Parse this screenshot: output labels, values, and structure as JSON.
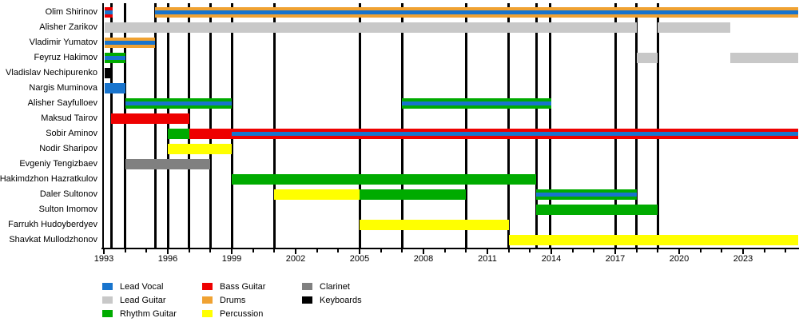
{
  "chart_data": {
    "type": "bar",
    "variant": "band-members-gantt-timeline",
    "title": "",
    "x_axis": {
      "min": 1993,
      "max": 2025.6,
      "major_ticks": [
        1993,
        1996,
        1999,
        2002,
        2005,
        2008,
        2011,
        2014,
        2017,
        2020,
        2023
      ],
      "minor_tick_interval": 1
    },
    "event_lines": [
      1993.35,
      1994.0,
      1995.4,
      1996.0,
      1997.0,
      1998.0,
      1999.0,
      2001.0,
      2005.0,
      2007.0,
      2010.0,
      2012.0,
      2013.3,
      2013.95,
      2017.0,
      2018.0,
      2019.0
    ],
    "legend": [
      {
        "label": "Lead Vocal",
        "color": "#1874CD"
      },
      {
        "label": "Lead Guitar",
        "color": "#C8C8C8"
      },
      {
        "label": "Rhythm Guitar",
        "color": "#00AB00"
      },
      {
        "label": "Bass Guitar",
        "color": "#EE0000"
      },
      {
        "label": "Drums",
        "color": "#F0A232"
      },
      {
        "label": "Percussion",
        "color": "#FFFF00"
      },
      {
        "label": "Clarinet",
        "color": "#808080"
      },
      {
        "label": "Keyboards",
        "color": "#000000"
      }
    ],
    "members": [
      {
        "name": "Olim Shirinov",
        "segments": [
          {
            "start": 1993.05,
            "end": 1993.4,
            "roles": [
              "Bass Guitar",
              "Lead Vocal"
            ]
          },
          {
            "start": 1995.4,
            "end": 2025.6,
            "roles": [
              "Drums",
              "Lead Vocal"
            ]
          }
        ]
      },
      {
        "name": "Alisher Zarikov",
        "segments": [
          {
            "start": 1993.05,
            "end": 2018.0,
            "roles": [
              "Lead Guitar"
            ]
          },
          {
            "start": 2019.0,
            "end": 2022.4,
            "roles": [
              "Lead Guitar"
            ]
          }
        ]
      },
      {
        "name": "Vladimir Yumatov",
        "segments": [
          {
            "start": 1993.05,
            "end": 1995.4,
            "roles": [
              "Drums",
              "Lead Vocal"
            ]
          }
        ]
      },
      {
        "name": "Feyruz Hakimov",
        "segments": [
          {
            "start": 1993.05,
            "end": 1994.0,
            "roles": [
              "Rhythm Guitar",
              "Lead Vocal"
            ]
          },
          {
            "start": 2018.0,
            "end": 2019.0,
            "roles": [
              "Lead Guitar"
            ]
          },
          {
            "start": 2022.4,
            "end": 2025.6,
            "roles": [
              "Lead Guitar"
            ]
          }
        ]
      },
      {
        "name": "Vladislav Nechipurenko",
        "segments": [
          {
            "start": 1993.05,
            "end": 1993.35,
            "roles": [
              "Keyboards"
            ]
          }
        ]
      },
      {
        "name": "Nargis Muminova",
        "segments": [
          {
            "start": 1993.05,
            "end": 1994.0,
            "roles": [
              "Lead Vocal"
            ]
          }
        ]
      },
      {
        "name": "Alisher Sayfulloev",
        "segments": [
          {
            "start": 1994.0,
            "end": 1999.0,
            "roles": [
              "Rhythm Guitar",
              "Lead Vocal"
            ]
          },
          {
            "start": 2007.0,
            "end": 2014.0,
            "roles": [
              "Rhythm Guitar",
              "Lead Vocal"
            ]
          }
        ]
      },
      {
        "name": "Maksud Tairov",
        "segments": [
          {
            "start": 1993.35,
            "end": 1997.0,
            "roles": [
              "Bass Guitar"
            ]
          }
        ]
      },
      {
        "name": "Sobir Aminov",
        "segments": [
          {
            "start": 1996.0,
            "end": 1997.0,
            "roles": [
              "Rhythm Guitar"
            ]
          },
          {
            "start": 1997.0,
            "end": 1999.0,
            "roles": [
              "Bass Guitar"
            ]
          },
          {
            "start": 1999.0,
            "end": 2025.6,
            "roles": [
              "Bass Guitar",
              "Lead Vocal"
            ]
          }
        ]
      },
      {
        "name": "Nodir Sharipov",
        "segments": [
          {
            "start": 1996.0,
            "end": 1999.0,
            "roles": [
              "Percussion"
            ]
          }
        ]
      },
      {
        "name": "Evgeniy Tengizbaev",
        "segments": [
          {
            "start": 1994.0,
            "end": 1998.0,
            "roles": [
              "Clarinet"
            ]
          }
        ]
      },
      {
        "name": "Hakimdzhon Hazratkulov",
        "segments": [
          {
            "start": 1999.0,
            "end": 2013.3,
            "roles": [
              "Rhythm Guitar"
            ]
          }
        ]
      },
      {
        "name": "Daler Sultonov",
        "segments": [
          {
            "start": 2001.0,
            "end": 2005.0,
            "roles": [
              "Percussion"
            ]
          },
          {
            "start": 2005.0,
            "end": 2010.0,
            "roles": [
              "Rhythm Guitar"
            ]
          },
          {
            "start": 2013.3,
            "end": 2018.0,
            "roles": [
              "Rhythm Guitar",
              "Lead Vocal"
            ]
          }
        ]
      },
      {
        "name": "Sulton Imomov",
        "segments": [
          {
            "start": 2013.3,
            "end": 2019.0,
            "roles": [
              "Rhythm Guitar"
            ]
          }
        ]
      },
      {
        "name": "Farrukh Hudoyberdyev",
        "segments": [
          {
            "start": 2005.0,
            "end": 2012.0,
            "roles": [
              "Percussion"
            ]
          }
        ]
      },
      {
        "name": "Shavkat Mullodzhonov",
        "segments": [
          {
            "start": 2012.0,
            "end": 2025.6,
            "roles": [
              "Percussion"
            ]
          }
        ]
      }
    ]
  }
}
